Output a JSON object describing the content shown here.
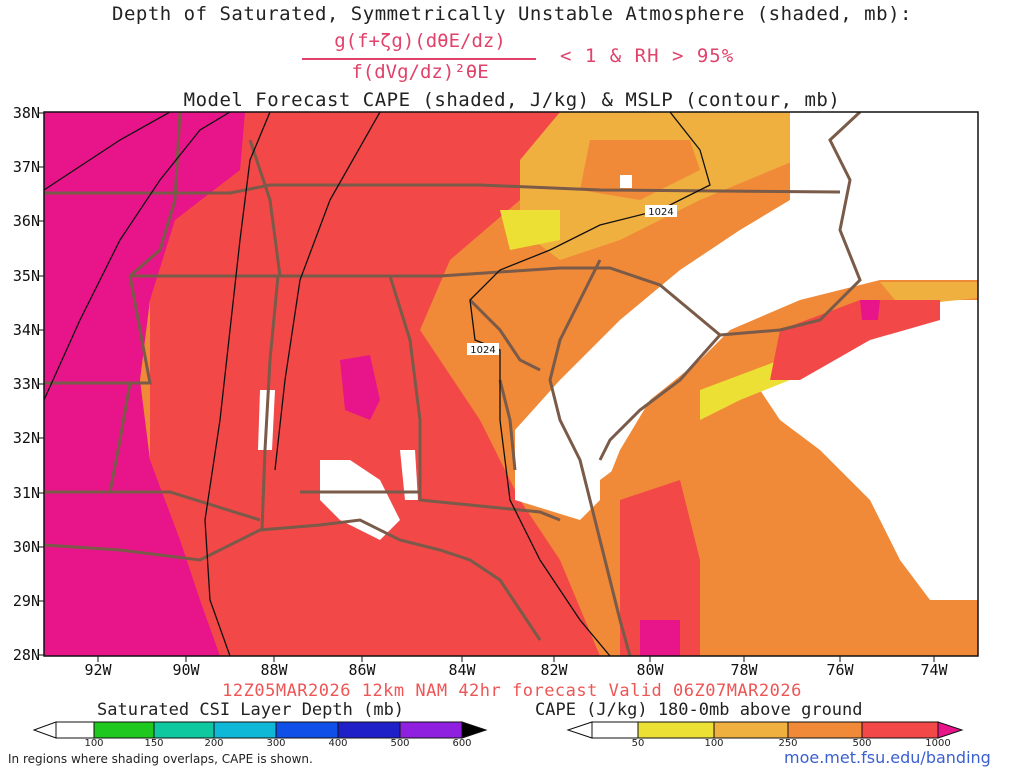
{
  "title": {
    "line1": "Depth of Saturated, Symmetrically Unstable Atmosphere (shaded, mb):",
    "numerator": "g(f+ζg)(dθE/dz)",
    "denominator": "f(dVg/dz)²θE",
    "condition": "< 1 & RH > 95%",
    "line2": "Model Forecast CAPE (shaded, J/kg) & MSLP (contour, mb)"
  },
  "axes": {
    "lat_labels": [
      "38N",
      "37N",
      "36N",
      "35N",
      "34N",
      "33N",
      "32N",
      "31N",
      "30N",
      "29N",
      "28N"
    ],
    "lon_labels": [
      "92W",
      "90W",
      "88W",
      "86W",
      "84W",
      "82W",
      "80W",
      "78W",
      "76W",
      "74W"
    ]
  },
  "isobar_labels": [
    "1024",
    "1024"
  ],
  "valid_line": "12Z05MAR2026 12km NAM 42hr forecast Valid 06Z07MAR2026",
  "legend_csi": {
    "title": "Saturated CSI Layer Depth (mb)",
    "ticks": [
      "100",
      "150",
      "200",
      "300",
      "400",
      "500",
      "600"
    ],
    "colors": [
      "#ffffff",
      "#1ec81e",
      "#10c8a0",
      "#10b8d8",
      "#1050e8",
      "#2020c8",
      "#9020e0",
      "#000000"
    ]
  },
  "legend_cape": {
    "title": "CAPE (J/kg) 180-0mb above ground",
    "ticks": [
      "50",
      "100",
      "250",
      "500",
      "1000"
    ],
    "colors": [
      "#ffffff",
      "#ece035",
      "#f0b040",
      "#f08a38",
      "#f24848",
      "#e8148a"
    ]
  },
  "footnote": "In regions where shading overlaps, CAPE is shown.",
  "credit": "moe.met.fsu.edu/banding"
}
